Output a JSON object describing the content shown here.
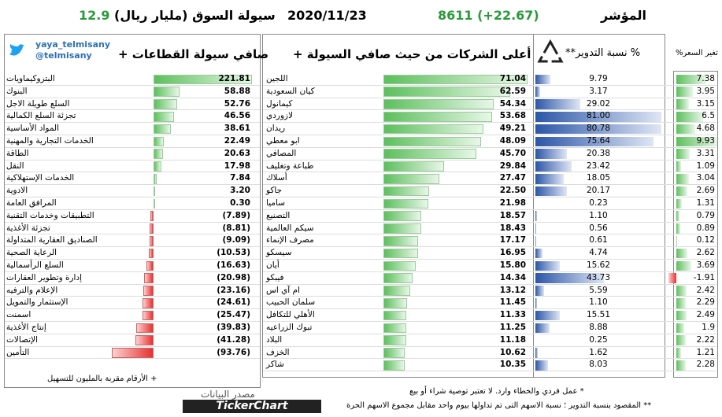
{
  "header": {
    "index_label": "المؤشر",
    "index_value": "8611 (+22.67)",
    "date": "2020/11/23",
    "liquidity_label": "سيولة السوق (مليار ريال)",
    "liquidity_value": "12.9"
  },
  "sectors": {
    "title": "صافي سيولة القطاعات +",
    "handle": "yaya_telmisany",
    "handle2": "@telmisany",
    "names": [
      "البتروكيماويات",
      "البنوك",
      "السلع طويلة الاجل",
      "تجزئة السلع الكمالية",
      "المواد الأساسية",
      "الخدمات التجارية والمهنية",
      "الطاقة",
      "النقل",
      "الخدمات الإستهلاكية",
      "الادوية",
      "المرافق العامة",
      "التطبيقات وخدمات التقنية",
      "تجزئة الأغذية",
      "الصناديق العقارية المتداولة",
      "الرعاية الصحية",
      "السلع الرأسمالية",
      "إدارة وتطوير العقارات",
      "الإعلام والترفيه",
      "الإستثمار والتمويل",
      "اسمنت",
      "إنتاج الأغذية",
      "الإتصالات",
      "التأمين"
    ],
    "values": [
      221.81,
      58.88,
      52.76,
      46.56,
      38.61,
      22.49,
      20.63,
      17.98,
      7.84,
      3.2,
      0.3,
      -7.89,
      -8.81,
      -9.09,
      -10.53,
      -16.63,
      -20.98,
      -23.16,
      -24.61,
      -25.47,
      -39.83,
      -41.28,
      -93.76
    ],
    "value_labels": [
      "221.81",
      "58.88",
      "52.76",
      "46.56",
      "38.61",
      "22.49",
      "20.63",
      "17.98",
      "7.84",
      "3.20",
      "0.30",
      "(7.89)",
      "(8.81)",
      "(9.09)",
      "(10.53)",
      "(16.63)",
      "(20.98)",
      "(23.16)",
      "(24.61)",
      "(25.47)",
      "(39.83)",
      "(41.28)",
      "(93.76)"
    ],
    "note": "+ الأرقام مقربة بالمليون للتسهيل"
  },
  "companies": {
    "title": "أعلى الشركات من حيث صافي السيولة +",
    "turnover_title": "% نسبة التدوير**",
    "change_title": "تغير السعر%",
    "names": [
      "اللجين",
      "كيان السعودية",
      "كيمانول",
      "لازوردي",
      "ريدان",
      "ابو معطي",
      "المصافي",
      "طباعة وتغليف",
      "أسلاك",
      "جاكو",
      "ساميا",
      "التصنيع",
      "سيكم العالمية",
      "مصرف الإنماء",
      "سيسكو",
      "أيان",
      "فيبكو",
      "ام آي اس",
      "سلمان الحبيب",
      "الأهلي للتكافل",
      "تبوك الزراعيه",
      "البلاد",
      "الخزف",
      "شاكر"
    ],
    "liquidity": {
      "values": [
        71.04,
        62.59,
        54.34,
        53.68,
        49.21,
        48.09,
        45.7,
        29.84,
        27.47,
        22.5,
        21.98,
        18.57,
        18.43,
        17.17,
        16.95,
        15.8,
        14.34,
        13.12,
        11.45,
        11.33,
        11.25,
        11.18,
        10.62,
        10.35
      ],
      "value_labels": [
        "71.04",
        "62.59",
        "54.34",
        "53.68",
        "49.21",
        "48.09",
        "45.70",
        "29.84",
        "27.47",
        "22.50",
        "21.98",
        "18.57",
        "18.43",
        "17.17",
        "16.95",
        "15.80",
        "14.34",
        "13.12",
        "11.45",
        "11.33",
        "11.25",
        "11.18",
        "10.62",
        "10.35"
      ]
    },
    "turnover": {
      "values": [
        9.79,
        3.17,
        29.02,
        81,
        80.78,
        75.64,
        20.38,
        23.42,
        18.05,
        20.17,
        0.23,
        1.1,
        0.56,
        0.61,
        4.74,
        15.62,
        43.73,
        5.59,
        1.1,
        15.51,
        8.88,
        0.25,
        1.62,
        8.03
      ],
      "value_labels": [
        "9.79",
        "3.17",
        "29.02",
        "81.00",
        "80.78",
        "75.64",
        "20.38",
        "23.42",
        "18.05",
        "20.17",
        "0.23",
        "1.10",
        "0.56",
        "0.61",
        "4.74",
        "15.62",
        "43.73",
        "5.59",
        "1.10",
        "15.51",
        "8.88",
        "0.25",
        "1.62",
        "8.03"
      ]
    },
    "change": {
      "values": [
        7.38,
        3.95,
        3.15,
        6.5,
        4.68,
        9.93,
        3.31,
        1.09,
        3.04,
        2.69,
        1.31,
        0.79,
        0.89,
        0.12,
        2.62,
        3.69,
        -1.91,
        2.42,
        2.29,
        2.49,
        1.9,
        2.22,
        1.21,
        2.28
      ],
      "value_labels": [
        "7.38",
        "3.95",
        "3.15",
        "6.5",
        "4.68",
        "9.93",
        "3.31",
        "1.09",
        "3.04",
        "2.69",
        "1.31",
        "0.79",
        "0.89",
        "0.12",
        "2.62",
        "3.69",
        "-1.91",
        "2.42",
        "2.29",
        "2.49",
        "1.9",
        "2.22",
        "1.21",
        "2.28"
      ]
    }
  },
  "footer": {
    "source_label": "مصدر البيانات",
    "source": "TickerChart",
    "note1": "* عمل فردي والخطاء وارد. لا تعتبر توصية شراء أو بيع",
    "note2": "** المقصود بنسبة التدوير ؛ نسبة الاسهم التى تم تداولها بيوم واحد مقابل مجموع الاسهم الحرة"
  }
}
